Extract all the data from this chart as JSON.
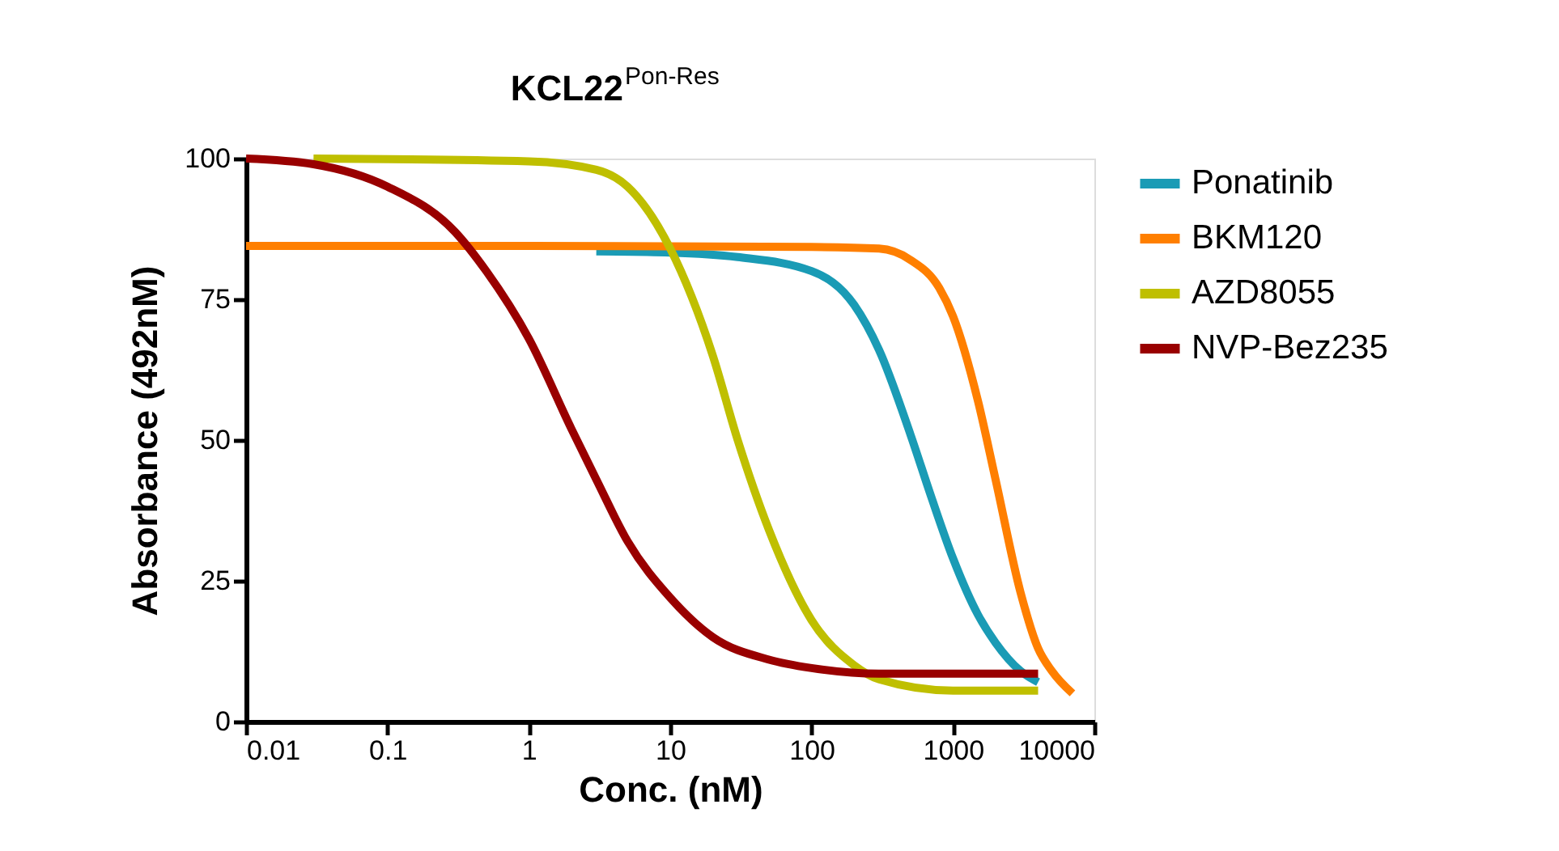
{
  "chart_data": {
    "type": "line",
    "title": "KCL22$^{Pon-Res}$",
    "xlabel": "Conc. (nM)",
    "ylabel": "Absorbance (492nM)",
    "log": "x",
    "xlim": [
      0.01,
      10000
    ],
    "xticks": [
      0.01,
      0.1,
      1,
      10,
      100,
      1000,
      10000
    ],
    "ylim": [
      0,
      100
    ],
    "yticks": [
      0,
      25,
      50,
      75,
      100
    ],
    "grid": false,
    "legend": "right",
    "marker": "none",
    "line_style": "solid",
    "series": [
      {
        "name": "Ponatinib",
        "color": "#1a9bb5",
        "x": [
          3,
          10,
          30,
          100,
          200,
          300,
          500,
          700,
          1000,
          1500,
          2000,
          3000,
          4000
        ],
        "values": [
          83.5,
          83.3,
          82.5,
          80,
          74,
          66,
          51,
          40,
          29,
          19,
          14,
          9,
          7
        ]
      },
      {
        "name": "BKM120",
        "color": "#ff7f00",
        "x": [
          0.01,
          1,
          100,
          300,
          500,
          800,
          1000,
          1500,
          2000,
          3000,
          4000,
          5000,
          7000
        ],
        "values": [
          84.5,
          84.5,
          84.3,
          84,
          82,
          77,
          72,
          57,
          43,
          23,
          13,
          9,
          5
        ]
      },
      {
        "name": "AZD8055",
        "color": "#bfbf00",
        "x": [
          0.03,
          1,
          3,
          5,
          10,
          20,
          30,
          50,
          100,
          200,
          300,
          1000,
          4000
        ],
        "values": [
          100,
          99.5,
          98,
          95,
          84,
          65,
          50,
          34,
          18,
          10,
          7.5,
          5.5,
          5.5
        ]
      },
      {
        "name": "NVP-Bez235",
        "color": "#990000",
        "x": [
          0.01,
          0.03,
          0.1,
          0.3,
          0.5,
          1,
          2,
          3,
          5,
          10,
          20,
          50,
          100,
          300,
          1000,
          4000
        ],
        "values": [
          100,
          99,
          95,
          87,
          80,
          68,
          52,
          43,
          32,
          22,
          15,
          11,
          9.5,
          8.5,
          8.5,
          8.5
        ]
      }
    ]
  }
}
